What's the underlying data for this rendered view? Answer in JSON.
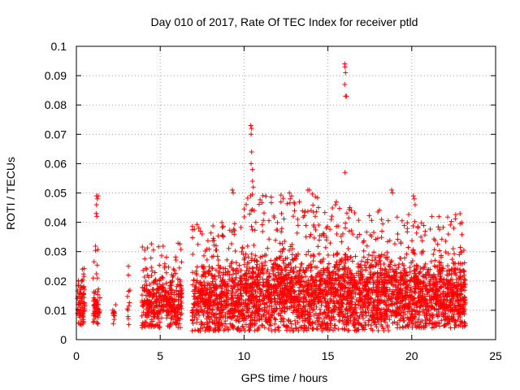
{
  "chart_data": {
    "type": "scatter",
    "title": "Day 010 of 2017, Rate Of TEC Index for receiver ptld",
    "xlabel": "GPS time / hours",
    "ylabel": "ROTI / TECUs",
    "xlim": [
      0,
      25
    ],
    "ylim": [
      0,
      0.1
    ],
    "xticks": [
      0,
      5,
      10,
      15,
      20,
      25
    ],
    "xtick_labels": [
      "0",
      "5",
      "10",
      "15",
      "20",
      "25"
    ],
    "yticks": [
      0,
      0.01,
      0.02,
      0.03,
      0.04,
      0.05,
      0.06,
      0.07,
      0.08,
      0.09,
      0.1
    ],
    "ytick_labels": [
      "0",
      "0.01",
      "0.02",
      "0.03",
      "0.04",
      "0.05",
      "0.06",
      "0.07",
      "0.08",
      "0.09",
      "0.1"
    ],
    "grid": true,
    "marker": "+",
    "color": "#ff0000",
    "series": [
      {
        "name": "ROTI",
        "segments": [
          {
            "x_start": 0.05,
            "x_end": 0.5,
            "y_low": 0.005,
            "y_high": 0.027,
            "y_mid": 0.012,
            "count": 80
          },
          {
            "x_start": 1.0,
            "x_end": 1.4,
            "y_low": 0.005,
            "y_high": 0.032,
            "y_mid": 0.011,
            "count": 60
          },
          {
            "x_start": 2.15,
            "x_end": 2.35,
            "y_low": 0.004,
            "y_high": 0.012,
            "y_mid": 0.008,
            "count": 12
          },
          {
            "x_start": 3.0,
            "x_end": 3.2,
            "y_low": 0.004,
            "y_high": 0.025,
            "y_mid": 0.011,
            "count": 10
          },
          {
            "x_start": 3.9,
            "x_end": 6.3,
            "y_low": 0.004,
            "y_high": 0.033,
            "y_mid": 0.013,
            "count": 420
          },
          {
            "x_start": 6.9,
            "x_end": 10.0,
            "y_low": 0.003,
            "y_high": 0.04,
            "y_mid": 0.014,
            "count": 620
          },
          {
            "x_start": 10.0,
            "x_end": 14.5,
            "y_low": 0.003,
            "y_high": 0.05,
            "y_mid": 0.016,
            "count": 1000
          },
          {
            "x_start": 14.5,
            "x_end": 18.8,
            "y_low": 0.003,
            "y_high": 0.045,
            "y_mid": 0.016,
            "count": 950
          },
          {
            "x_start": 18.8,
            "x_end": 23.2,
            "y_low": 0.004,
            "y_high": 0.043,
            "y_mid": 0.015,
            "count": 950
          }
        ],
        "outliers": [
          {
            "x": 1.2,
            "y": 0.049
          },
          {
            "x": 1.25,
            "y": 0.048
          },
          {
            "x": 1.2,
            "y": 0.046
          },
          {
            "x": 1.18,
            "y": 0.043
          },
          {
            "x": 1.22,
            "y": 0.042
          },
          {
            "x": 1.3,
            "y": 0.049
          },
          {
            "x": 3.1,
            "y": 0.025
          },
          {
            "x": 3.1,
            "y": 0.022
          },
          {
            "x": 7.3,
            "y": 0.038
          },
          {
            "x": 7.5,
            "y": 0.036
          },
          {
            "x": 9.3,
            "y": 0.051
          },
          {
            "x": 9.35,
            "y": 0.05
          },
          {
            "x": 10.4,
            "y": 0.073
          },
          {
            "x": 10.45,
            "y": 0.072
          },
          {
            "x": 10.42,
            "y": 0.07
          },
          {
            "x": 10.45,
            "y": 0.064
          },
          {
            "x": 10.42,
            "y": 0.06
          },
          {
            "x": 10.5,
            "y": 0.058
          },
          {
            "x": 10.5,
            "y": 0.054
          },
          {
            "x": 10.55,
            "y": 0.052
          },
          {
            "x": 10.6,
            "y": 0.044
          },
          {
            "x": 10.7,
            "y": 0.04
          },
          {
            "x": 12.2,
            "y": 0.047
          },
          {
            "x": 12.7,
            "y": 0.05
          },
          {
            "x": 12.75,
            "y": 0.048
          },
          {
            "x": 13.3,
            "y": 0.047
          },
          {
            "x": 13.8,
            "y": 0.051
          },
          {
            "x": 13.9,
            "y": 0.051
          },
          {
            "x": 14.0,
            "y": 0.044
          },
          {
            "x": 15.5,
            "y": 0.047
          },
          {
            "x": 15.45,
            "y": 0.046
          },
          {
            "x": 16.0,
            "y": 0.094
          },
          {
            "x": 16.02,
            "y": 0.093
          },
          {
            "x": 16.05,
            "y": 0.091
          },
          {
            "x": 16.0,
            "y": 0.087
          },
          {
            "x": 16.05,
            "y": 0.083
          },
          {
            "x": 16.1,
            "y": 0.083
          },
          {
            "x": 16.02,
            "y": 0.057
          },
          {
            "x": 16.3,
            "y": 0.045
          },
          {
            "x": 16.4,
            "y": 0.044
          },
          {
            "x": 18.8,
            "y": 0.051
          },
          {
            "x": 18.85,
            "y": 0.05
          },
          {
            "x": 20.1,
            "y": 0.049
          },
          {
            "x": 20.15,
            "y": 0.048
          },
          {
            "x": 20.2,
            "y": 0.046
          },
          {
            "x": 21.2,
            "y": 0.042
          },
          {
            "x": 22.5,
            "y": 0.038
          }
        ]
      }
    ]
  }
}
